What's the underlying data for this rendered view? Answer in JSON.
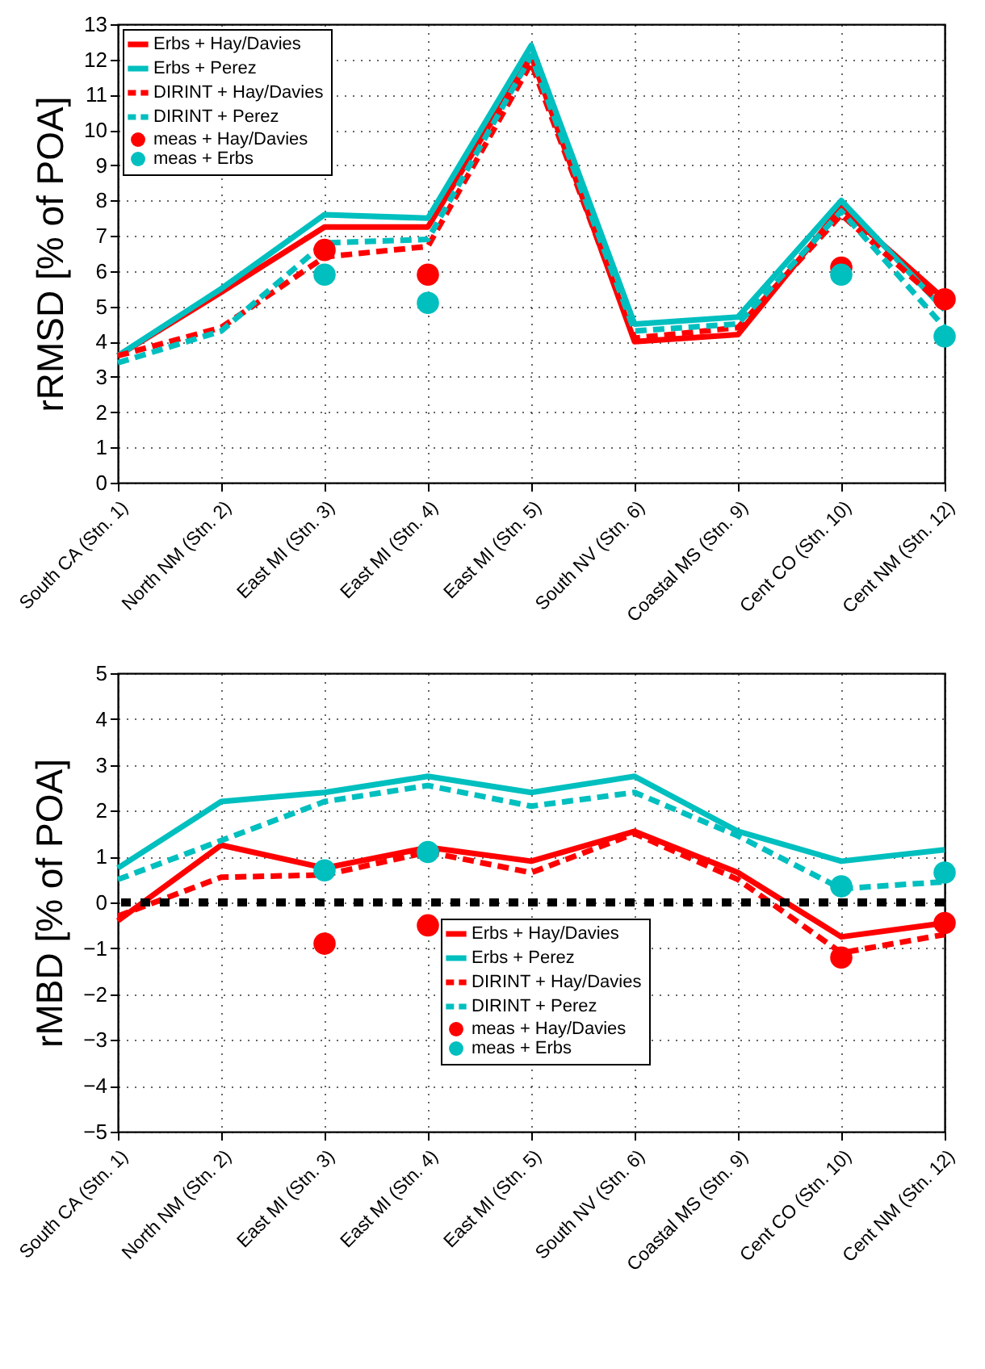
{
  "chart_data": [
    {
      "type": "line",
      "ylabel": "rRMSD [% of POA]",
      "categories": [
        "South CA (Stn. 1)",
        "North NM (Stn. 2)",
        "East MI (Stn. 3)",
        "East MI (Stn. 4)",
        "East MI (Stn. 5)",
        "South NV (Stn. 6)",
        "Coastal MS (Stn. 9)",
        "Cent CO (Stn. 10)",
        "Cent NM (Stn. 12)"
      ],
      "ylim": [
        0,
        13
      ],
      "yticks": [
        0,
        1,
        2,
        3,
        4,
        5,
        6,
        7,
        8,
        9,
        10,
        11,
        12,
        13
      ],
      "grid": true,
      "legend": "top left",
      "series": [
        {
          "name": "Erbs + Hay/Davies",
          "type": "line",
          "line_style": "solid",
          "color": "#ff0000",
          "values": [
            3.6,
            5.4,
            7.25,
            7.25,
            12.1,
            4.0,
            4.2,
            7.8,
            5.2
          ]
        },
        {
          "name": "Erbs + Perez",
          "type": "line",
          "line_style": "solid",
          "color": "#00bfbf",
          "values": [
            3.6,
            5.5,
            7.6,
            7.5,
            12.4,
            4.5,
            4.7,
            8.0,
            4.9
          ]
        },
        {
          "name": "DIRINT + Hay/Davies",
          "type": "line",
          "line_style": "dashed",
          "color": "#ff0000",
          "values": [
            3.6,
            4.4,
            6.4,
            6.7,
            11.9,
            4.1,
            4.4,
            7.6,
            5.0
          ]
        },
        {
          "name": "DIRINT + Perez",
          "type": "line",
          "line_style": "dashed",
          "color": "#00bfbf",
          "values": [
            3.4,
            4.3,
            6.8,
            6.9,
            12.1,
            4.3,
            4.5,
            7.7,
            4.4
          ]
        },
        {
          "name": "meas + Hay/Davies",
          "type": "scatter",
          "marker": "circle",
          "color": "#ff0000",
          "values": [
            null,
            null,
            6.6,
            5.9,
            null,
            null,
            null,
            6.1,
            5.2
          ]
        },
        {
          "name": "meas + Erbs",
          "type": "scatter",
          "marker": "circle",
          "color": "#00bfbf",
          "values": [
            null,
            null,
            5.9,
            5.1,
            null,
            null,
            null,
            5.9,
            4.15
          ]
        }
      ]
    },
    {
      "type": "line",
      "ylabel": "rMBD [% of POA]",
      "categories": [
        "South CA (Stn. 1)",
        "North NM (Stn. 2)",
        "East MI (Stn. 3)",
        "East MI (Stn. 4)",
        "East MI (Stn. 5)",
        "South NV (Stn. 6)",
        "Coastal MS (Stn. 9)",
        "Cent CO (Stn. 10)",
        "Cent NM (Stn. 12)"
      ],
      "ylim": [
        -5,
        5
      ],
      "yticks": [
        -5,
        -4,
        -3,
        -2,
        -1,
        0,
        1,
        2,
        3,
        4,
        5
      ],
      "grid": true,
      "legend": "bottom right",
      "ref_lines": [
        {
          "axis": "y",
          "value": 0,
          "color": "#000000",
          "line_style": "dotted"
        }
      ],
      "series": [
        {
          "name": "Erbs + Hay/Davies",
          "type": "line",
          "line_style": "solid",
          "color": "#ff0000",
          "values": [
            -0.4,
            1.25,
            0.75,
            1.2,
            0.9,
            1.55,
            0.65,
            -0.75,
            -0.45
          ]
        },
        {
          "name": "Erbs + Perez",
          "type": "line",
          "line_style": "solid",
          "color": "#00bfbf",
          "values": [
            0.75,
            2.2,
            2.4,
            2.75,
            2.4,
            2.75,
            1.55,
            0.9,
            1.15
          ]
        },
        {
          "name": "DIRINT + Hay/Davies",
          "type": "line",
          "line_style": "dashed",
          "color": "#ff0000",
          "values": [
            -0.3,
            0.55,
            0.6,
            1.1,
            0.65,
            1.5,
            0.5,
            -1.1,
            -0.7
          ]
        },
        {
          "name": "DIRINT + Perez",
          "type": "line",
          "line_style": "dashed",
          "color": "#00bfbf",
          "values": [
            0.5,
            1.35,
            2.2,
            2.55,
            2.1,
            2.4,
            1.45,
            0.3,
            0.45
          ]
        },
        {
          "name": "meas + Hay/Davies",
          "type": "scatter",
          "marker": "circle",
          "color": "#ff0000",
          "values": [
            null,
            null,
            -0.9,
            -0.5,
            null,
            null,
            null,
            -1.2,
            -0.45
          ]
        },
        {
          "name": "meas + Erbs",
          "type": "scatter",
          "marker": "circle",
          "color": "#00bfbf",
          "values": [
            null,
            null,
            0.7,
            1.1,
            null,
            null,
            null,
            0.35,
            0.65
          ]
        }
      ]
    }
  ]
}
